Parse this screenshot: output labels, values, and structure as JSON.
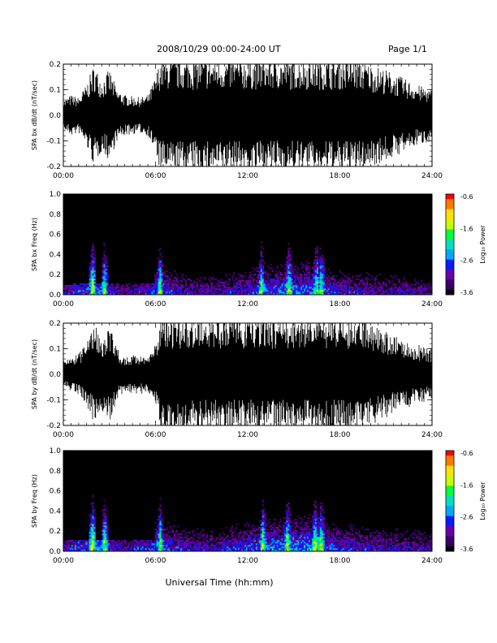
{
  "header": {
    "date_range": "2008/10/29  00:00-24:00 UT",
    "page": "Page 1/1"
  },
  "footer": {
    "xlabel": "Universal Time (hh:mm)"
  },
  "colors": {
    "waveform": "#000000",
    "background": "#ffffff",
    "colormap": [
      "#000000",
      "#3a0063",
      "#6a00a8",
      "#0a1aff",
      "#00a6ff",
      "#00e0c0",
      "#00ff40",
      "#c8ff00",
      "#ffe000",
      "#ff7a00",
      "#ff0000"
    ]
  },
  "chart_data": [
    {
      "type": "line",
      "panel": "bx-waveform",
      "ylabel": "SPA bx dB/dt (nT/sec)",
      "xticks": [
        "00:00",
        "06:00",
        "12:00",
        "18:00",
        "24:00"
      ],
      "yticks": [
        "0.2",
        "0.1",
        "0.0",
        "-0.1",
        "-0.2"
      ],
      "xlim": [
        0,
        24
      ],
      "ylim": [
        -0.2,
        0.2
      ],
      "amplitude_envelope": {
        "hours": [
          0,
          0.5,
          1,
          1.5,
          2,
          2.5,
          3,
          3.5,
          4,
          5,
          5.5,
          6,
          6.3,
          7,
          8,
          9,
          10,
          11,
          12,
          13,
          14,
          15,
          16,
          17,
          18,
          19,
          20,
          21,
          22,
          23,
          24
        ],
        "values": [
          0.06,
          0.08,
          0.07,
          0.12,
          0.2,
          0.14,
          0.18,
          0.1,
          0.08,
          0.07,
          0.08,
          0.15,
          0.22,
          0.22,
          0.22,
          0.22,
          0.22,
          0.22,
          0.22,
          0.22,
          0.22,
          0.22,
          0.22,
          0.22,
          0.22,
          0.22,
          0.2,
          0.18,
          0.15,
          0.12,
          0.1
        ]
      }
    },
    {
      "type": "heatmap",
      "panel": "bx-spectrogram",
      "ylabel": "SPA bx Freq (Hz)",
      "xticks": [
        "00:00",
        "06:00",
        "12:00",
        "18:00",
        "24:00"
      ],
      "yticks": [
        "1.0",
        "0.8",
        "0.6",
        "0.4",
        "0.2",
        "0.0"
      ],
      "xlim": [
        0,
        24
      ],
      "ylim": [
        0,
        1.0
      ],
      "colorbar": {
        "label": "Log₁₀ Power",
        "ticks": [
          "-0.6",
          "-1.6",
          "-2.6",
          "-3.6"
        ],
        "range": [
          -3.6,
          -0.6
        ]
      },
      "intense_bands_hours": [
        1.9,
        2.7,
        6.3,
        12.9,
        14.7,
        16.5,
        16.8
      ],
      "low_freq_power_by_hour": {
        "hours": [
          0,
          2,
          4,
          6,
          8,
          10,
          12,
          14,
          16,
          18,
          20,
          22,
          24
        ],
        "values": [
          -3.0,
          -2.4,
          -3.1,
          -2.6,
          -2.9,
          -3.0,
          -2.7,
          -2.5,
          -2.4,
          -2.8,
          -2.9,
          -3.0,
          -3.1
        ]
      }
    },
    {
      "type": "line",
      "panel": "by-waveform",
      "ylabel": "SPA by dB/dt (nT/sec)",
      "xticks": [
        "00:00",
        "06:00",
        "12:00",
        "18:00",
        "24:00"
      ],
      "yticks": [
        "0.2",
        "0.1",
        "0.0",
        "-0.1",
        "-0.2"
      ],
      "xlim": [
        0,
        24
      ],
      "ylim": [
        -0.2,
        0.2
      ],
      "amplitude_envelope": {
        "hours": [
          0,
          0.5,
          1,
          1.5,
          2,
          2.5,
          3,
          3.5,
          4,
          5,
          5.5,
          6,
          6.3,
          7,
          8,
          9,
          10,
          11,
          12,
          13,
          14,
          15,
          16,
          17,
          18,
          19,
          20,
          21,
          22,
          23,
          24
        ],
        "values": [
          0.05,
          0.07,
          0.08,
          0.12,
          0.2,
          0.14,
          0.2,
          0.1,
          0.07,
          0.08,
          0.07,
          0.12,
          0.22,
          0.22,
          0.22,
          0.22,
          0.22,
          0.22,
          0.22,
          0.22,
          0.22,
          0.22,
          0.22,
          0.22,
          0.22,
          0.22,
          0.2,
          0.17,
          0.14,
          0.12,
          0.1
        ]
      }
    },
    {
      "type": "heatmap",
      "panel": "by-spectrogram",
      "ylabel": "SPA by Freq (Hz)",
      "xticks": [
        "00:00",
        "06:00",
        "12:00",
        "18:00",
        "24:00"
      ],
      "yticks": [
        "1.0",
        "0.8",
        "0.6",
        "0.4",
        "0.2",
        "0.0"
      ],
      "xlim": [
        0,
        24
      ],
      "ylim": [
        0,
        1.0
      ],
      "colorbar": {
        "label": "Log₁₀ Power",
        "ticks": [
          "-0.6",
          "-1.6",
          "-2.6",
          "-3.6"
        ],
        "range": [
          -3.6,
          -0.6
        ]
      },
      "intense_bands_hours": [
        1.9,
        2.7,
        6.3,
        13.0,
        14.6,
        16.4,
        16.8
      ],
      "low_freq_power_by_hour": {
        "hours": [
          0,
          2,
          4,
          6,
          8,
          10,
          12,
          14,
          16,
          18,
          20,
          22,
          24
        ],
        "values": [
          -2.9,
          -2.3,
          -3.0,
          -2.5,
          -2.8,
          -2.9,
          -2.6,
          -2.4,
          -2.3,
          -2.7,
          -2.8,
          -2.9,
          -3.0
        ]
      }
    }
  ]
}
